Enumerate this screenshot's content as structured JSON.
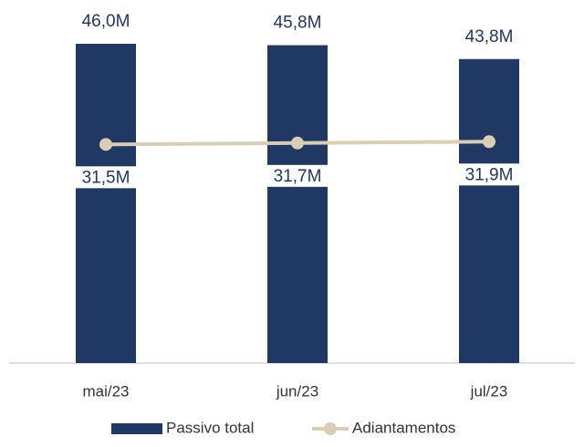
{
  "chart_data": {
    "type": "bar",
    "categories": [
      "mai/23",
      "jun/23",
      "jul/23"
    ],
    "series": [
      {
        "name": "Passivo total",
        "type": "bar",
        "color": "#1f3864",
        "values": [
          46.0,
          45.8,
          43.8
        ],
        "value_labels": [
          "46,0M",
          "45,8M",
          "43,8M"
        ]
      },
      {
        "name": "Adiantamentos",
        "type": "line",
        "color": "#d9cdb4",
        "values": [
          31.5,
          31.7,
          31.9
        ],
        "value_labels": [
          "31,5M",
          "31,7M",
          "31,9M"
        ]
      }
    ],
    "legend": "bottom"
  }
}
